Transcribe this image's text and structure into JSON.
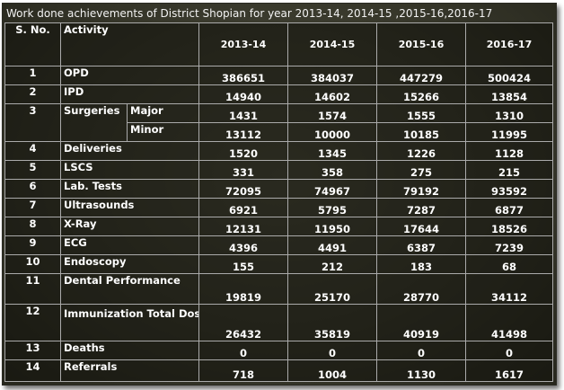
{
  "title": "Work done achievements of District Shopian  for year 2013-14, 2014-15 ,2015-16,2016-17",
  "headers": {
    "sno": "S. No.",
    "activity": "Activity",
    "years": [
      "2013-14",
      "2014-15",
      "2015-16",
      "2016-17"
    ]
  },
  "rows": [
    {
      "sno": "1",
      "activity": "OPD",
      "values": [
        "386651",
        "384037",
        "447279",
        "500424"
      ]
    },
    {
      "sno": "2",
      "activity": "IPD",
      "values": [
        "14940",
        "14602",
        "15266",
        "13854"
      ]
    },
    {
      "sno": "3",
      "activity": "Surgeries",
      "sub": "Major",
      "values": [
        "1431",
        "1574",
        "1555",
        "1310"
      ]
    },
    {
      "sno": "",
      "activity": "",
      "sub": "Minor",
      "values": [
        "13112",
        "10000",
        "10185",
        "11995"
      ]
    },
    {
      "sno": "4",
      "activity": "Deliveries",
      "values": [
        "1520",
        "1345",
        "1226",
        "1128"
      ]
    },
    {
      "sno": "5",
      "activity": "LSCS",
      "values": [
        "331",
        "358",
        "275",
        "215"
      ]
    },
    {
      "sno": "6",
      "activity": "Lab. Tests",
      "values": [
        "72095",
        "74967",
        "79192",
        "93592"
      ]
    },
    {
      "sno": "7",
      "activity": "Ultrasounds",
      "values": [
        "6921",
        "5795",
        "7287",
        "6877"
      ]
    },
    {
      "sno": "8",
      "activity": "X-Ray",
      "values": [
        "12131",
        "11950",
        "17644",
        "18526"
      ]
    },
    {
      "sno": "9",
      "activity": "ECG",
      "values": [
        "4396",
        "4491",
        "6387",
        "7239"
      ]
    },
    {
      "sno": "10",
      "activity": "Endoscopy",
      "values": [
        "155",
        "212",
        "183",
        "68"
      ]
    },
    {
      "sno": "11",
      "activity": "Dental Performance",
      "values": [
        "19819",
        "25170",
        "28770",
        "34112"
      ]
    },
    {
      "sno": "12",
      "activity": "Immunization Total Doses",
      "values": [
        "26432",
        "35819",
        "40919",
        "41498"
      ]
    },
    {
      "sno": "13",
      "activity": "Deaths",
      "values": [
        "0",
        "0",
        "0",
        "0"
      ]
    },
    {
      "sno": "14",
      "activity": "Referrals",
      "values": [
        "718",
        "1004",
        "1130",
        "1617"
      ]
    }
  ]
}
